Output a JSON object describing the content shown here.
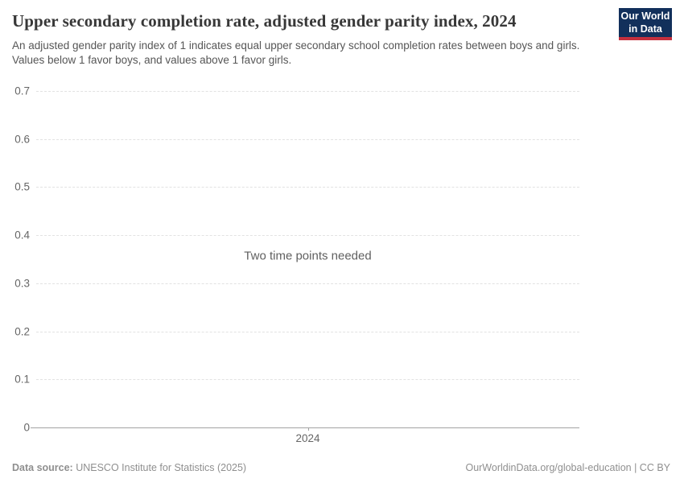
{
  "header": {
    "title": "Upper secondary completion rate, adjusted gender parity index, 2024",
    "subtitle": "An adjusted gender parity index of 1 indicates equal upper secondary school completion rates between boys and girls. Values below 1 favor boys, and values above 1 favor girls.",
    "logo": {
      "line1": "Our World",
      "line2": "in Data",
      "bg_color": "#12305b",
      "accent_color": "#c5303e"
    }
  },
  "chart_data": {
    "type": "line",
    "title": "Upper secondary completion rate, adjusted gender parity index, 2024",
    "message": "Two time points needed",
    "series": [],
    "categories": [
      "2024"
    ],
    "x_ticks": [
      {
        "label": "2024",
        "position_pct": 50
      }
    ],
    "y_ticks": [
      {
        "value": 0.7,
        "label": "0.7"
      },
      {
        "value": 0.6,
        "label": "0.6"
      },
      {
        "value": 0.5,
        "label": "0.5"
      },
      {
        "value": 0.4,
        "label": "0.4"
      },
      {
        "value": 0.3,
        "label": "0.3"
      },
      {
        "value": 0.2,
        "label": "0.2"
      },
      {
        "value": 0.1,
        "label": "0.1"
      },
      {
        "value": 0,
        "label": "0"
      }
    ],
    "ylim": [
      0,
      0.7
    ],
    "xlabel": "",
    "ylabel": "",
    "grid": "horizontal-dashed",
    "legend": "none"
  },
  "footer": {
    "datasource_label": "Data source:",
    "datasource_value": " UNESCO Institute for Statistics (2025)",
    "credit": "OurWorldinData.org/global-education | CC BY"
  }
}
